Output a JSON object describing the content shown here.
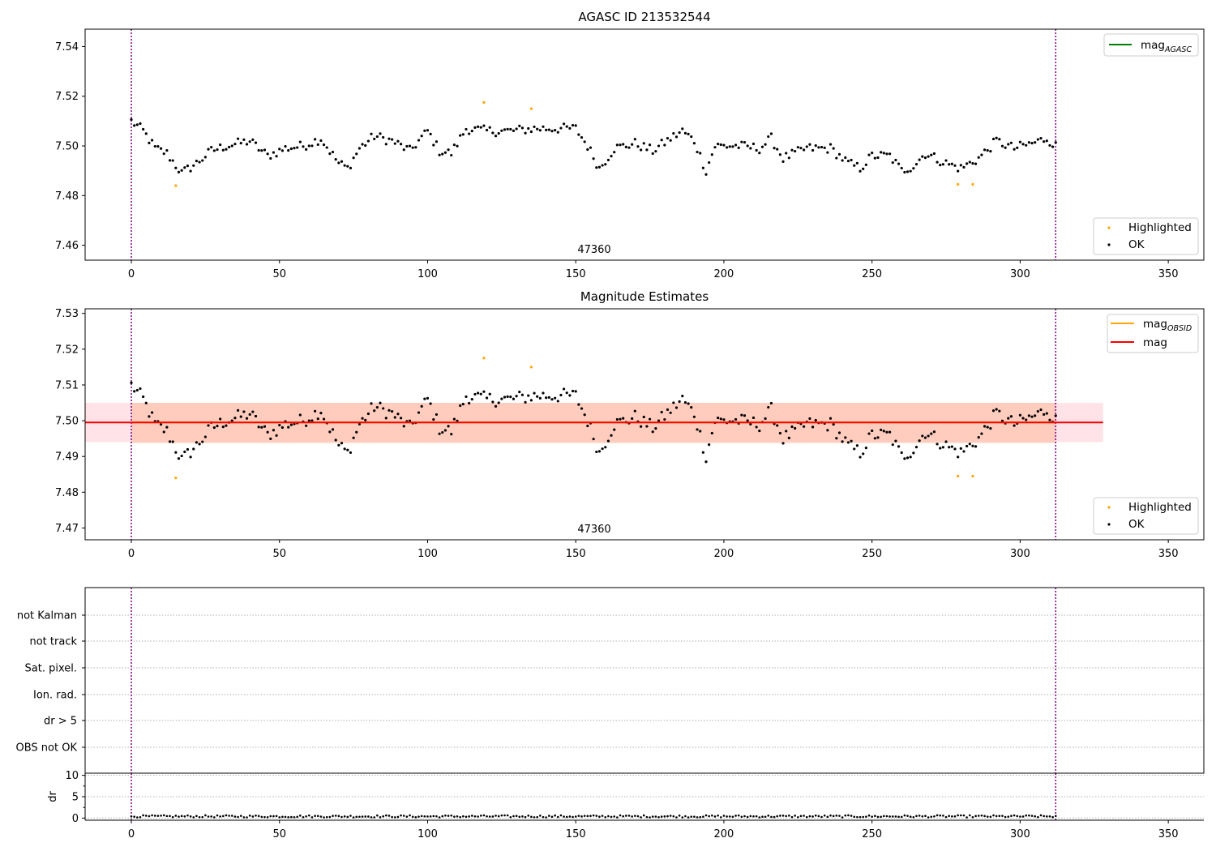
{
  "chart_data": [
    {
      "type": "scatter",
      "title": "AGASC ID 213532544",
      "annotation": "47360",
      "x_ticks": [
        0,
        50,
        100,
        150,
        200,
        250,
        300,
        350
      ],
      "y_ticks": [
        "7.46",
        "7.48",
        "7.50",
        "7.52",
        "7.54"
      ],
      "xlim": [
        -15.6,
        362
      ],
      "ylim": [
        7.454,
        7.547
      ],
      "grid": false,
      "vertical_lines": [
        0,
        312
      ],
      "legend_lines": {
        "placement": "top-right",
        "entries": [
          {
            "label": "mag",
            "subscript": "AGASC",
            "color": "#008000"
          }
        ]
      },
      "legend_points": {
        "placement": "bottom-right",
        "entries": [
          {
            "label": "Highlighted",
            "color": "#ffa500"
          },
          {
            "label": "OK",
            "color": "#000000"
          }
        ]
      },
      "series": [
        {
          "name": "Highlighted",
          "color": "#ffa500",
          "points": [
            [
              15,
              7.484
            ],
            [
              119,
              7.5175
            ],
            [
              135,
              7.515
            ],
            [
              279,
              7.4845
            ],
            [
              284,
              7.4845
            ]
          ]
        },
        {
          "name": "OK",
          "color": "#000000",
          "anchors": [
            [
              0,
              7.51
            ],
            [
              4,
              7.506
            ],
            [
              8,
              7.499
            ],
            [
              12,
              7.497
            ],
            [
              17,
              7.489
            ],
            [
              22,
              7.493
            ],
            [
              27,
              7.498
            ],
            [
              32,
              7.5
            ],
            [
              40,
              7.502
            ],
            [
              46,
              7.496
            ],
            [
              52,
              7.499
            ],
            [
              58,
              7.5
            ],
            [
              64,
              7.503
            ],
            [
              70,
              7.493
            ],
            [
              73,
              7.491
            ],
            [
              77,
              7.499
            ],
            [
              82,
              7.504
            ],
            [
              88,
              7.502
            ],
            [
              94,
              7.498
            ],
            [
              100,
              7.506
            ],
            [
              104,
              7.498
            ],
            [
              108,
              7.497
            ],
            [
              113,
              7.507
            ],
            [
              120,
              7.506
            ],
            [
              128,
              7.506
            ],
            [
              136,
              7.507
            ],
            [
              142,
              7.507
            ],
            [
              150,
              7.507
            ],
            [
              154,
              7.5
            ],
            [
              158,
              7.491
            ],
            [
              163,
              7.499
            ],
            [
              170,
              7.501
            ],
            [
              176,
              7.498
            ],
            [
              182,
              7.503
            ],
            [
              186,
              7.506
            ],
            [
              190,
              7.502
            ],
            [
              194,
              7.49
            ],
            [
              197,
              7.5
            ],
            [
              205,
              7.5
            ],
            [
              212,
              7.499
            ],
            [
              216,
              7.503
            ],
            [
              220,
              7.495
            ],
            [
              228,
              7.499
            ],
            [
              236,
              7.499
            ],
            [
              242,
              7.493
            ],
            [
              246,
              7.491
            ],
            [
              250,
              7.496
            ],
            [
              256,
              7.496
            ],
            [
              260,
              7.49
            ],
            [
              264,
              7.492
            ],
            [
              268,
              7.497
            ],
            [
              275,
              7.493
            ],
            [
              280,
              7.491
            ],
            [
              286,
              7.495
            ],
            [
              292,
              7.502
            ],
            [
              298,
              7.499
            ],
            [
              304,
              7.501
            ],
            [
              309,
              7.503
            ],
            [
              312,
              7.5
            ]
          ]
        }
      ]
    },
    {
      "type": "scatter",
      "title": "Magnitude Estimates",
      "annotation": "47360",
      "x_ticks": [
        0,
        50,
        100,
        150,
        200,
        250,
        300,
        350
      ],
      "y_ticks": [
        "7.47",
        "7.48",
        "7.49",
        "7.50",
        "7.51",
        "7.52",
        "7.53"
      ],
      "xlim": [
        -15.6,
        362
      ],
      "ylim": [
        7.4667,
        7.5313
      ],
      "grid": false,
      "vertical_lines": [
        0,
        312
      ],
      "bands": [
        {
          "x0": -15.6,
          "x1": 328,
          "y0": 7.494,
          "y1": 7.505,
          "color": "#ffc0cb",
          "opacity": 0.45
        },
        {
          "x0": 0,
          "x1": 312,
          "y0": 7.4937,
          "y1": 7.505,
          "color": "#ffa070",
          "opacity": 0.35
        }
      ],
      "lines": [
        {
          "label": "mag",
          "subscript": "OBSID",
          "color": "#ffa500",
          "y": 7.4995,
          "x0": 0,
          "x1": 312
        },
        {
          "label": "mag",
          "color": "#ff0000",
          "y": 7.4995,
          "x0": -15.6,
          "x1": 328
        }
      ],
      "legend_lines": {
        "placement": "top-right",
        "entries": [
          {
            "label": "mag",
            "subscript": "OBSID",
            "color": "#ffa500"
          },
          {
            "label": "mag",
            "color": "#ff0000"
          }
        ]
      },
      "legend_points": {
        "placement": "bottom-right",
        "entries": [
          {
            "label": "Highlighted",
            "color": "#ffa500"
          },
          {
            "label": "OK",
            "color": "#000000"
          }
        ]
      },
      "series": "same as chart 1"
    },
    {
      "type": "scatter",
      "title": "",
      "categories": [
        "not Kalman",
        "not track",
        "Sat. pixel.",
        "Ion. rad.",
        "dr > 5",
        "OBS not OK"
      ],
      "x_ticks": [
        0,
        50,
        100,
        150,
        200,
        250,
        300,
        350
      ],
      "xlim": [
        -15.6,
        362
      ],
      "vertical_lines": [
        0,
        312
      ],
      "grid": true,
      "series": []
    },
    {
      "type": "scatter",
      "title": "",
      "ylabel": "dr",
      "x_ticks": [
        0,
        50,
        100,
        150,
        200,
        250,
        300,
        350
      ],
      "y_ticks": [
        "0",
        "5",
        "10"
      ],
      "xlim": [
        -15.6,
        362
      ],
      "ylim": [
        -0.5,
        10.5
      ],
      "vertical_lines": [
        0,
        312
      ],
      "series": [
        {
          "name": "dr",
          "color": "#000000",
          "x_range": [
            0,
            312
          ],
          "y_range": [
            0.0,
            0.9
          ]
        }
      ]
    }
  ]
}
